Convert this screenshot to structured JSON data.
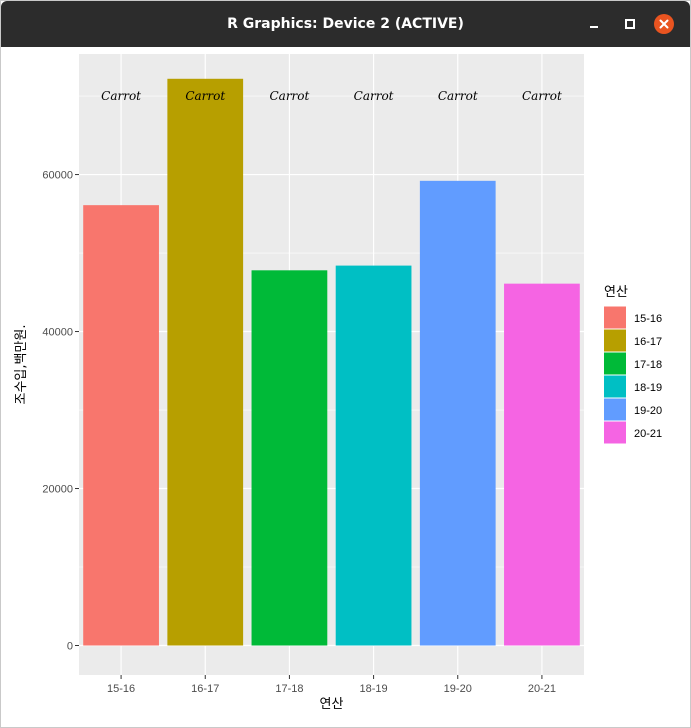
{
  "window": {
    "title": "R Graphics: Device 2 (ACTIVE)",
    "buttons": {
      "minimize": "minimize-icon",
      "maximize": "maximize-icon",
      "close": "close-icon"
    },
    "close_color": "#e95420"
  },
  "chart_data": {
    "type": "bar",
    "categories": [
      "15-16",
      "16-17",
      "17-18",
      "18-19",
      "19-20",
      "20-21"
    ],
    "values": [
      56100,
      72200,
      47800,
      48400,
      59200,
      46100
    ],
    "colors": [
      "#F8766D",
      "#B79F00",
      "#00BA38",
      "#00BFC4",
      "#619CFF",
      "#F564E3"
    ],
    "bar_labels": [
      "Carrot",
      "Carrot",
      "Carrot",
      "Carrot",
      "Carrot",
      "Carrot"
    ],
    "bar_label_y": 70000,
    "xlabel": "연산",
    "ylabel": "조수입,백만원.",
    "ylim": [
      0,
      75500
    ],
    "yticks": [
      0,
      20000,
      40000,
      60000
    ],
    "ytick_labels": [
      "0",
      "20000",
      "40000",
      "60000"
    ],
    "grid": true,
    "panel_background": "#EBEBEB",
    "legend": {
      "title": "연산",
      "position": "right",
      "items": [
        "15-16",
        "16-17",
        "17-18",
        "18-19",
        "19-20",
        "20-21"
      ]
    }
  }
}
